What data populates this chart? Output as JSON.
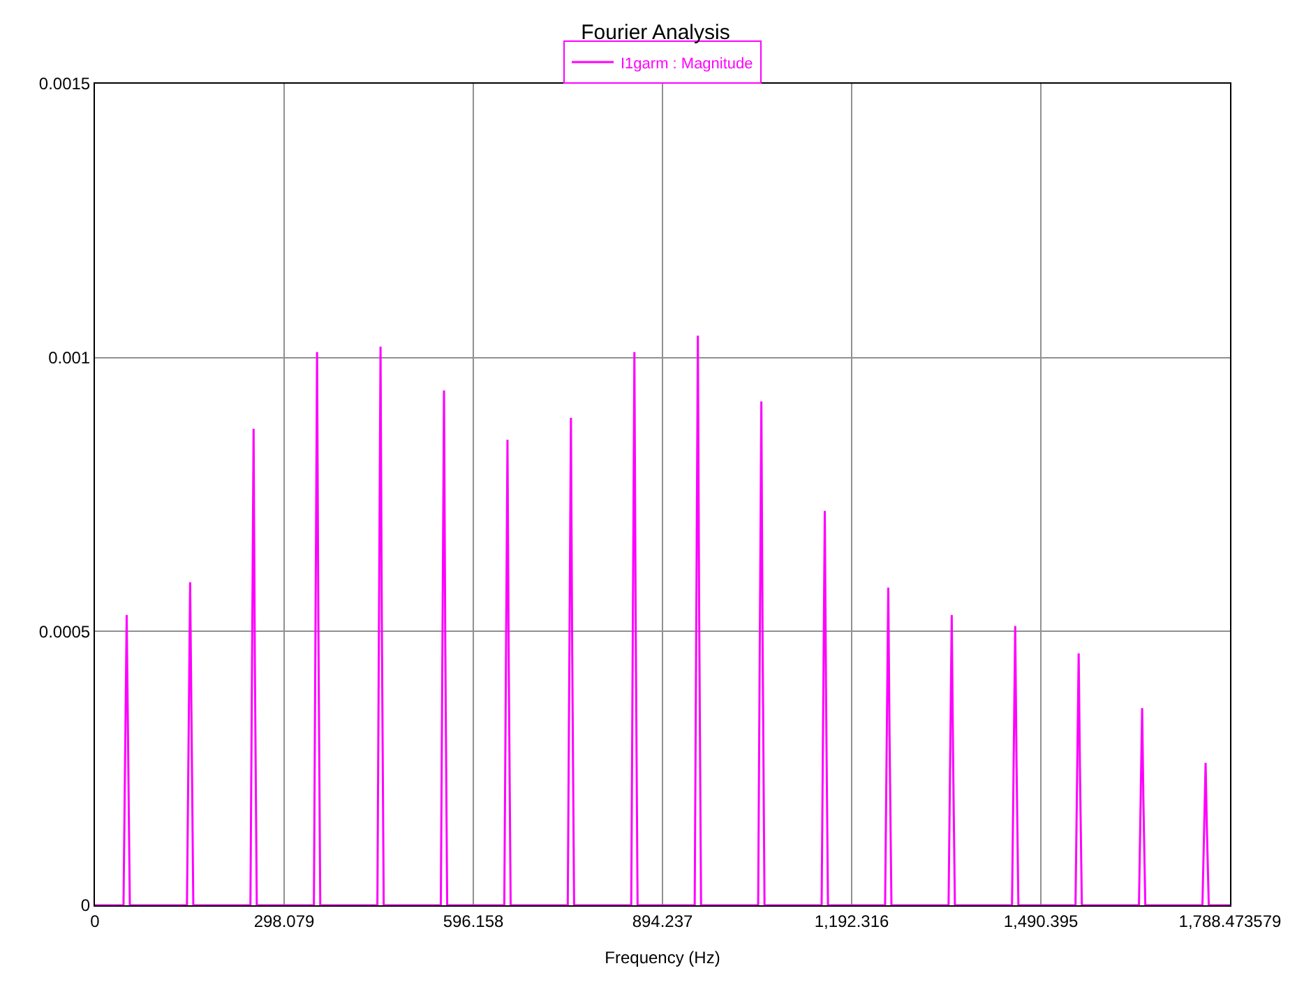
{
  "chart_data": {
    "type": "line",
    "title": "Fourier Analysis",
    "xlabel": "Frequency (Hz)",
    "series": [
      {
        "name": "I1garm : Magnitude",
        "color": "#ff00ff",
        "x": [
          0,
          45,
          50,
          55,
          145,
          150,
          155,
          245,
          250,
          252,
          255,
          345,
          350,
          352,
          355,
          445,
          450,
          452,
          455,
          545,
          550,
          552,
          555,
          645,
          650,
          652,
          655,
          745,
          750,
          752,
          755,
          845,
          850,
          852,
          855,
          945,
          950,
          952,
          955,
          1045,
          1050,
          1052,
          1055,
          1145,
          1150,
          1152,
          1155,
          1245,
          1250,
          1252,
          1255,
          1345,
          1350,
          1352,
          1355,
          1445,
          1450,
          1452,
          1455,
          1545,
          1550,
          1552,
          1555,
          1645,
          1650,
          1652,
          1655,
          1745,
          1750,
          1752,
          1755,
          1788.473579
        ],
        "values": [
          0,
          0,
          0.00053,
          0,
          0,
          0.00059,
          0,
          0,
          0.00087,
          0.00044,
          0,
          0,
          0.00101,
          0.00052,
          0,
          0,
          0.00102,
          0.00052,
          0,
          0,
          0.00094,
          0.00048,
          0,
          0,
          0.00085,
          0.00044,
          0,
          0,
          0.00089,
          0.00046,
          0,
          0,
          0.00101,
          0.00052,
          0,
          0,
          0.00104,
          0.00054,
          0,
          0,
          0.00092,
          0.00048,
          0,
          0,
          0.00072,
          0.00038,
          0,
          0,
          0.00058,
          0.00031,
          0,
          0,
          0.00053,
          0.00028,
          0,
          0,
          0.00051,
          0.00027,
          0,
          0,
          0.00046,
          0.00025,
          0,
          0,
          0.00036,
          0.00019,
          0,
          0,
          0.00026,
          0.00014,
          0,
          0
        ]
      }
    ],
    "xlim": [
      0,
      1788.473579
    ],
    "xticks": [
      0,
      {
        "value": 298.079,
        "label": "298.079"
      },
      {
        "value": 596.158,
        "label": "596.158"
      },
      {
        "value": 894.237,
        "label": "894.237"
      },
      {
        "value": 1192.316,
        "label": "1,192.316"
      },
      {
        "value": 1490.395,
        "label": "1,490.395"
      },
      {
        "value": 1788.473579,
        "label": "1,788.473579"
      }
    ],
    "ylim": [
      0,
      0.0015
    ],
    "yticks": [
      0,
      0.0005,
      0.001,
      0.0015
    ],
    "grid": true,
    "legend": "top",
    "marker": "none",
    "line_style": "solid"
  }
}
